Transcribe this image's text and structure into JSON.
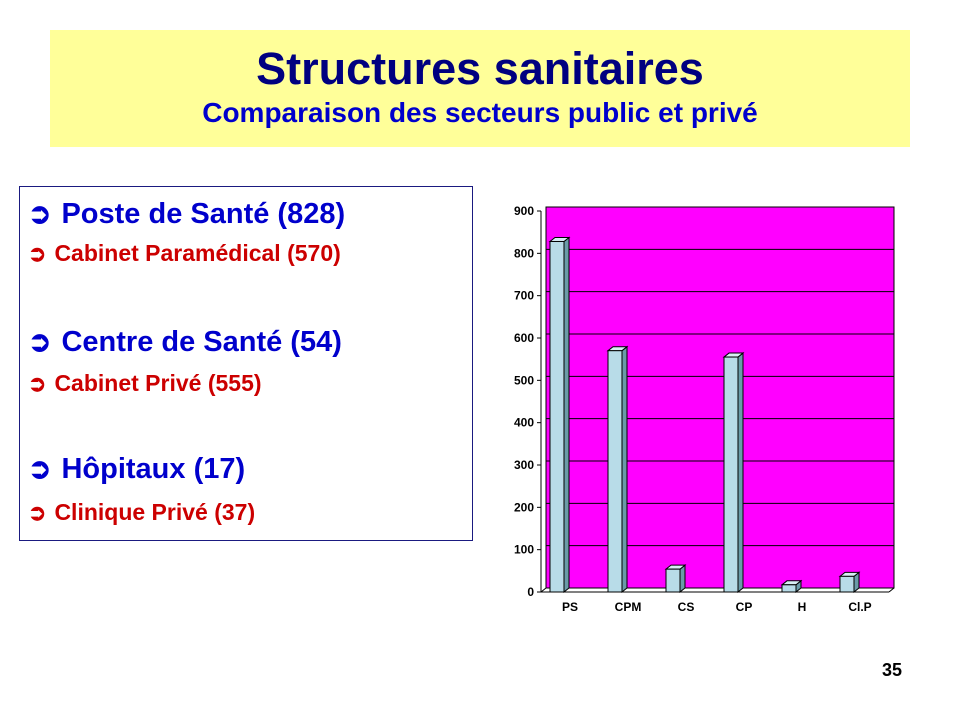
{
  "header": {
    "title": "Structures sanitaires",
    "subtitle": "Comparaison des secteurs public et privé"
  },
  "list": {
    "items": [
      {
        "text": "Poste de Santé (828)",
        "kind": "public"
      },
      {
        "text": "Cabinet Paramédical (570)",
        "kind": "private"
      },
      {
        "text": "Centre de Santé (54)",
        "kind": "public"
      },
      {
        "text": "Cabinet Privé (555)",
        "kind": "private"
      },
      {
        "text": "Hôpitaux (17)",
        "kind": "public"
      },
      {
        "text": "Clinique Privé (37)",
        "kind": "private"
      }
    ],
    "arrow_icon": "circled-right-arrow-icon",
    "colors": {
      "public": "#0000cc",
      "private": "#cc0000"
    }
  },
  "chart_data": {
    "type": "bar",
    "categories": [
      "PS",
      "CPM",
      "CS",
      "CP",
      "H",
      "Cl.P"
    ],
    "values": [
      828,
      570,
      54,
      555,
      17,
      37
    ],
    "ylim": [
      0,
      900
    ],
    "yticks": [
      0,
      100,
      200,
      300,
      400,
      500,
      600,
      700,
      800,
      900
    ],
    "grid": true,
    "style": "3d-bars",
    "colors": {
      "plot_background": "#ff00ff",
      "bar_front": "#b8dce8",
      "bar_top": "#d8eef5",
      "bar_side": "#6a9ba8",
      "grid": "#000000"
    }
  },
  "footer": {
    "page_number": "35"
  }
}
